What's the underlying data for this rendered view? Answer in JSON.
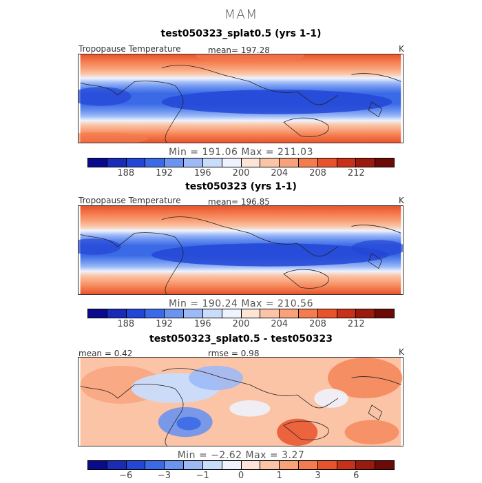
{
  "figure": {
    "season": "MAM"
  },
  "colorbar": {
    "abs_colors": [
      "#0a0a8c",
      "#1a2bb8",
      "#2346d6",
      "#3b6ae6",
      "#6b93f0",
      "#9dbaf7",
      "#c9dcfb",
      "#eef3fd",
      "#fde4d6",
      "#fbc4a6",
      "#f9a27a",
      "#f47c4e",
      "#e9532c",
      "#c8301a",
      "#9b1a10",
      "#6b0a06"
    ],
    "abs_tick_labels": [
      "188",
      "192",
      "196",
      "200",
      "204",
      "208",
      "212"
    ],
    "diff_tick_labels": [
      "−6",
      "−3",
      "−1",
      "0",
      "1",
      "3",
      "6"
    ]
  },
  "panels": [
    {
      "title": "test050323_splat0.5 (yrs 1-1)",
      "left_label": "Tropopause Temperature",
      "mean_label": "mean= 197.28",
      "units": "K",
      "min_max": "Min = 191.06 Max = 211.03"
    },
    {
      "title": "test050323 (yrs 1-1)",
      "left_label": "Tropopause Temperature",
      "mean_label": "mean= 196.85",
      "units": "K",
      "min_max": "Min = 190.24 Max = 210.56"
    },
    {
      "title": "test050323_splat0.5 - test050323",
      "left_label": "mean =   0.42",
      "mean_label": "rmse =    0.98",
      "units": "K",
      "min_max": "Min =   −2.62 Max =    3.27"
    }
  ]
}
